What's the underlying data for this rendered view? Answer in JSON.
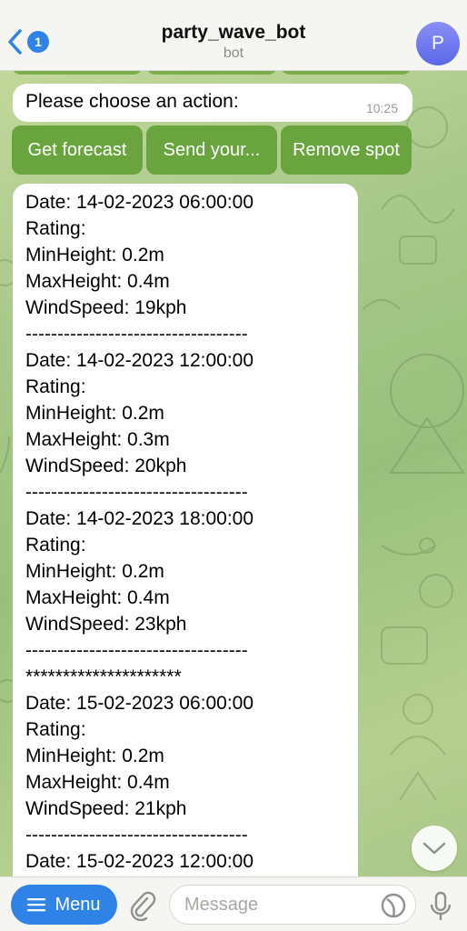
{
  "header": {
    "back_badge": "1",
    "title": "party_wave_bot",
    "subtitle": "bot",
    "avatar_letter": "P"
  },
  "prompt_message": {
    "text": "Please choose an action:",
    "time": "10:25"
  },
  "keyboard": {
    "buttons": [
      "Get forecast",
      "Send your...",
      "Remove spot"
    ]
  },
  "forecast_lines": [
    "Date: 14-02-2023 06:00:00",
    "Rating:",
    "MinHeight: 0.2m",
    "MaxHeight: 0.4m",
    "WindSpeed: 19kph",
    "-----------------------------------",
    "Date: 14-02-2023 12:00:00",
    "Rating:",
    "MinHeight: 0.2m",
    "MaxHeight: 0.3m",
    "WindSpeed: 20kph",
    "-----------------------------------",
    "Date: 14-02-2023 18:00:00",
    "Rating:",
    "MinHeight: 0.2m",
    "MaxHeight: 0.4m",
    "WindSpeed: 23kph",
    "-----------------------------------",
    "*********************",
    "Date: 15-02-2023 06:00:00",
    "Rating:",
    "MinHeight: 0.2m",
    "MaxHeight: 0.4m",
    "WindSpeed: 21kph",
    "-----------------------------------",
    "Date: 15-02-2023 12:00:00"
  ],
  "bottom_bar": {
    "menu_label": "Menu",
    "message_placeholder": "Message"
  },
  "icons": {
    "back": "chevron-left-icon",
    "attach": "paperclip-icon",
    "sticker": "sticker-icon",
    "mic": "microphone-icon",
    "scroll": "chevron-down-icon",
    "menu": "hamburger-icon"
  },
  "colors": {
    "accent_blue": "#2f82e6",
    "keyboard_green": "#6aa43f",
    "avatar_purple": "#6b74ee"
  }
}
